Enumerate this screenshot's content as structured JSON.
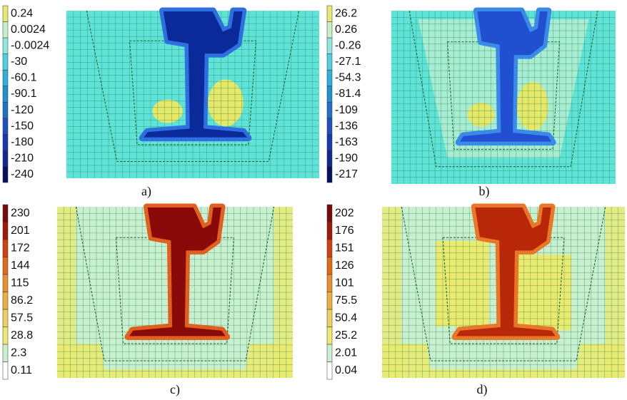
{
  "panels": [
    {
      "caption": "a)",
      "background": "#5fe3d9",
      "rail": "#0a2a9a",
      "rail_edge": "#2f6fe0",
      "patch": "#e6e86a",
      "legend": {
        "labels": [
          "0.24",
          "0.0024",
          "-0.0024",
          "-30",
          "-60.1",
          "-90.1",
          "-120",
          "-150",
          "-180",
          "-210",
          "-240"
        ],
        "colors": [
          "#e8e870",
          "#c8f0c8",
          "#8ee8e0",
          "#4fcfe0",
          "#30b0dc",
          "#2090d0",
          "#2070c8",
          "#2050c0",
          "#1838b0",
          "#102890",
          "#061060"
        ]
      }
    },
    {
      "caption": "b)",
      "background": "#5fe3d9",
      "rail": "#2050d0",
      "rail_edge": "#3a8ae8",
      "patch": "#e6e86a",
      "legend": {
        "labels": [
          "26.2",
          "0.26",
          "-0.26",
          "-27.1",
          "-54.3",
          "-81.4",
          "-109",
          "-136",
          "-163",
          "-190",
          "-217"
        ],
        "colors": [
          "#e8e870",
          "#c8f0c8",
          "#8ee8e0",
          "#4fcfe0",
          "#30b0dc",
          "#2090d0",
          "#2070c8",
          "#2050c0",
          "#1838b0",
          "#102890",
          "#061060"
        ]
      }
    },
    {
      "caption": "c)",
      "background": "#c8f0d0",
      "rail": "#8a0a0a",
      "rail_edge": "#e06020",
      "patch": "#eaea70",
      "legend": {
        "labels": [
          "230",
          "201",
          "172",
          "144",
          "115",
          "86.2",
          "57.5",
          "28.8",
          "2.3",
          "0.11"
        ],
        "colors": [
          "#7a0a0a",
          "#a01808",
          "#d04010",
          "#e06a18",
          "#e89030",
          "#ecb040",
          "#eed060",
          "#eee870",
          "#c8f0d0",
          "#ffffff"
        ]
      }
    },
    {
      "caption": "d)",
      "background": "#c8f0d0",
      "rail": "#b82808",
      "rail_edge": "#e87828",
      "patch": "#eaea70",
      "legend": {
        "labels": [
          "202",
          "176",
          "151",
          "126",
          "101",
          "75.5",
          "50.4",
          "25.2",
          "2.01",
          "0.04"
        ],
        "colors": [
          "#7a0a0a",
          "#a01808",
          "#d04010",
          "#e06a18",
          "#e89030",
          "#ecb040",
          "#eed060",
          "#eee870",
          "#c8f0d0",
          "#ffffff"
        ]
      }
    }
  ]
}
